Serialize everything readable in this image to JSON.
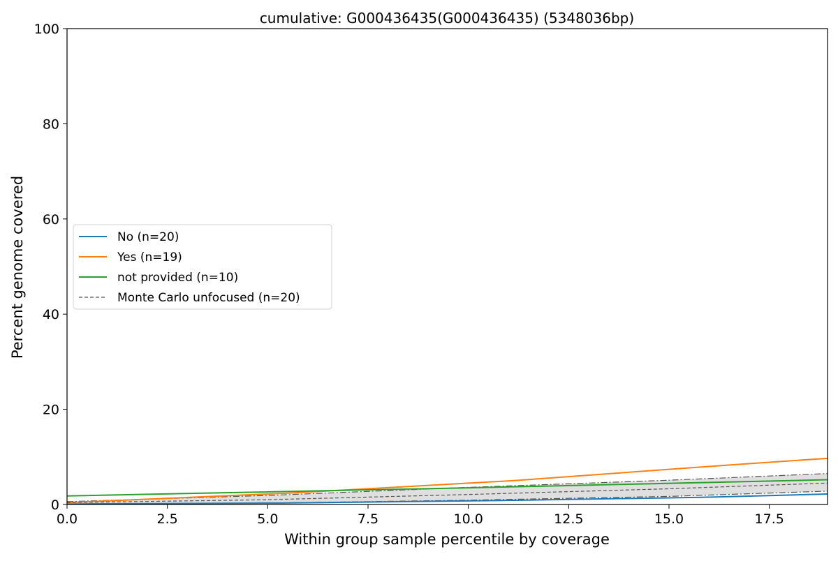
{
  "chart_data": {
    "type": "line",
    "title": "cumulative: G000436435(G000436435) (5348036bp)",
    "xlabel": "Within group sample percentile by coverage",
    "ylabel": "Percent genome covered",
    "xlim": [
      0,
      18.95
    ],
    "ylim": [
      0,
      100
    ],
    "xticks": [
      0,
      2.5,
      5,
      7.5,
      10,
      12.5,
      15,
      17.5
    ],
    "xtick_labels": [
      "0.0",
      "2.5",
      "5.0",
      "7.5",
      "10.0",
      "12.5",
      "15.0",
      "17.5"
    ],
    "yticks": [
      0,
      20,
      40,
      60,
      80,
      100
    ],
    "ytick_labels": [
      "0",
      "20",
      "40",
      "60",
      "80",
      "100"
    ],
    "grid": false,
    "legend_position": "center-left",
    "series": [
      {
        "name": "No (n=20)",
        "color": "#1f77b4",
        "style": "solid",
        "x": [
          0,
          5.26,
          10.53,
          15.79,
          18.95
        ],
        "y": [
          0.1,
          0.3,
          0.8,
          1.5,
          2.2
        ]
      },
      {
        "name": "Yes (n=19)",
        "color": "#ff7f0e",
        "style": "solid",
        "x": [
          0,
          5.56,
          11.11,
          16.67,
          18.95
        ],
        "y": [
          0.4,
          2.4,
          5.0,
          8.4,
          9.7
        ]
      },
      {
        "name": "not provided (n=10)",
        "color": "#2ca02c",
        "style": "solid",
        "x": [
          0,
          10,
          18.95
        ],
        "y": [
          1.8,
          3.5,
          5.2
        ]
      },
      {
        "name": "Monte Carlo unfocused (n=20)",
        "color": "#555555",
        "style": "dashed",
        "x": [
          0,
          5,
          10,
          15,
          18.95
        ],
        "y": [
          0.4,
          1.0,
          2.1,
          3.3,
          4.5
        ]
      }
    ],
    "band": {
      "color": "#d9d9d9",
      "x": [
        0,
        5,
        10,
        15,
        18.95
      ],
      "upper": [
        0.6,
        1.9,
        3.6,
        5.1,
        6.5
      ],
      "lower": [
        0.1,
        0.3,
        0.9,
        1.7,
        2.8
      ]
    }
  }
}
